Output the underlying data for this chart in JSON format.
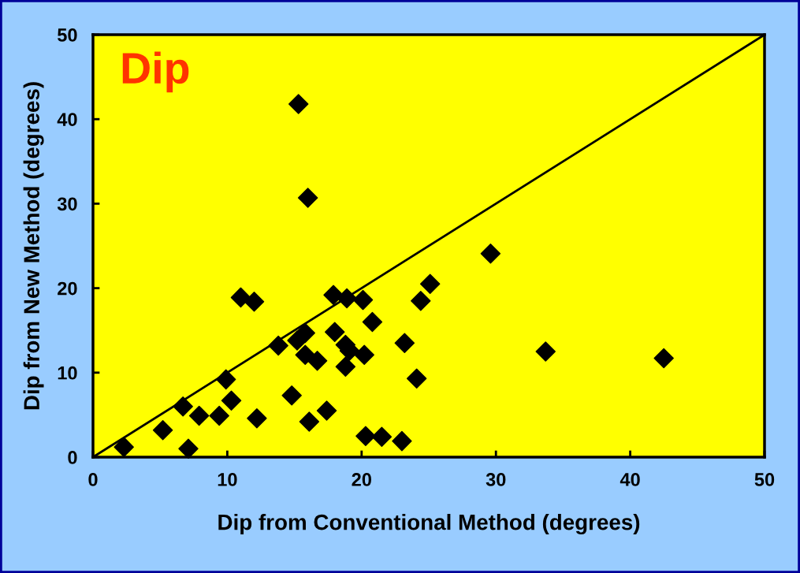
{
  "chart_data": {
    "type": "scatter",
    "xlabel": "Dip from Conventional Method (degrees)",
    "ylabel": "Dip from New Method (degrees)",
    "annotations": [
      "Dip"
    ],
    "xlim": [
      0,
      50
    ],
    "ylim": [
      0,
      50
    ],
    "xticks": [
      0,
      10,
      20,
      30,
      40,
      50
    ],
    "yticks": [
      0,
      10,
      20,
      30,
      40,
      50
    ],
    "grid": false,
    "marker": "diamond",
    "legend": false,
    "series": [
      {
        "color": "#000000",
        "x": [
          2.3,
          5.2,
          6.7,
          7.1,
          7.9,
          9.4,
          9.9,
          10.3,
          11.0,
          12.0,
          12.2,
          13.8,
          14.8,
          15.2,
          15.3,
          15.8,
          15.8,
          16.0,
          16.1,
          16.7,
          17.4,
          17.9,
          18.0,
          18.8,
          18.9,
          18.8,
          19.1,
          20.1,
          20.2,
          20.3,
          20.8,
          21.5,
          23.0,
          23.2,
          24.1,
          24.4,
          25.1,
          29.6,
          33.7,
          42.5
        ],
        "values": [
          1.2,
          3.2,
          6.0,
          1.0,
          4.9,
          4.9,
          9.2,
          6.7,
          18.9,
          18.4,
          4.6,
          13.2,
          7.3,
          13.8,
          41.8,
          14.7,
          12.1,
          30.7,
          4.2,
          11.4,
          5.5,
          19.2,
          14.8,
          10.7,
          18.8,
          13.3,
          12.6,
          18.6,
          12.1,
          2.5,
          16.0,
          2.4,
          1.9,
          13.5,
          9.3,
          18.5,
          20.5,
          24.1,
          12.5,
          11.7
        ]
      },
      {
        "type": "line",
        "color": "#000000",
        "x": [
          0,
          50
        ],
        "values": [
          0,
          50
        ],
        "marker": "none",
        "line_style": "solid"
      }
    ]
  }
}
